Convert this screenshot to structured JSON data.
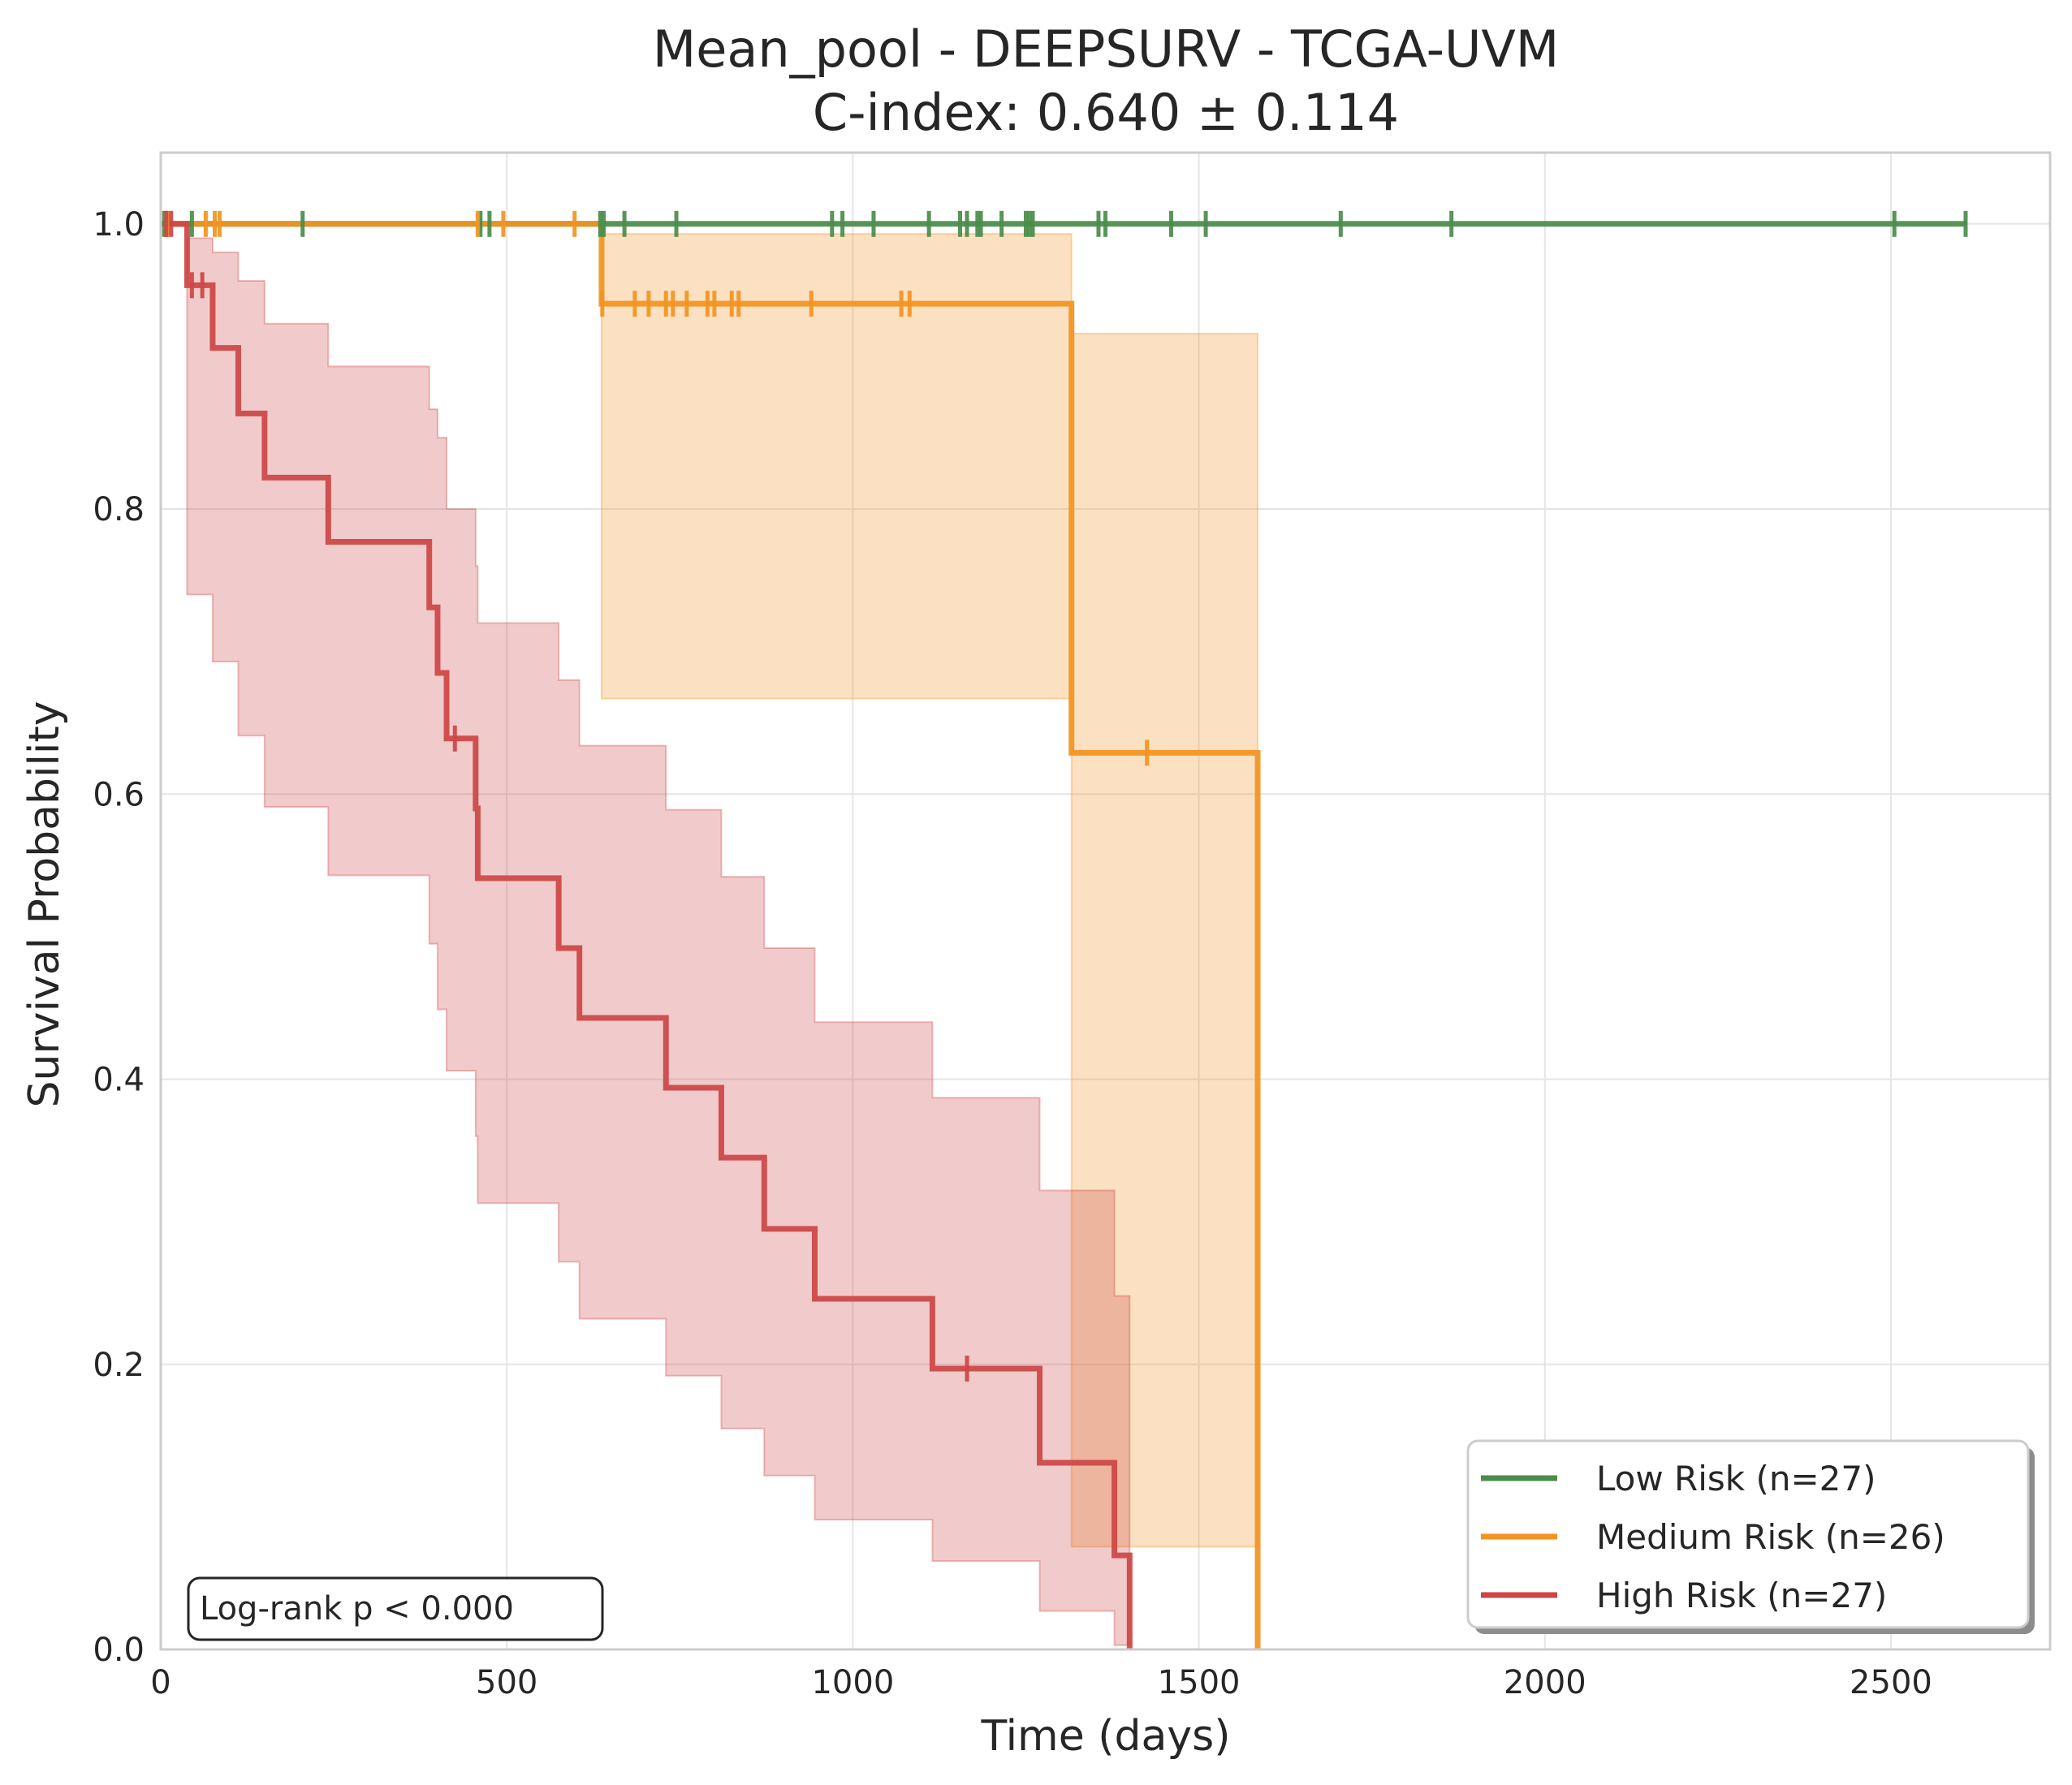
{
  "chart_data": {
    "type": "line",
    "subtype": "kaplan-meier",
    "title": "Mean_pool - DEEPSURV - TCGA-UVM",
    "subtitle": "C-index: 0.640 ± 0.114",
    "xlabel": "Time (days)",
    "ylabel": "Survival Probability",
    "xlim": [
      0,
      2730
    ],
    "ylim": [
      0,
      1.05
    ],
    "xticks": [
      0,
      500,
      1000,
      1500,
      2000,
      2500
    ],
    "yticks": [
      0.0,
      0.2,
      0.4,
      0.6,
      0.8,
      1.0
    ],
    "xtick_labels": [
      "0",
      "500",
      "1000",
      "1500",
      "2000",
      "2500"
    ],
    "ytick_labels": [
      "0.0",
      "0.2",
      "0.4",
      "0.6",
      "0.8",
      "1.0"
    ],
    "grid": true,
    "legend_position": "bottom-right",
    "annotation": "Log-rank p < 0.000",
    "series": [
      {
        "name": "Low Risk (n=27)",
        "color": "#4a8c4a",
        "steps": [
          [
            0,
            1.0
          ],
          [
            2608,
            1.0
          ]
        ],
        "ci": [],
        "censors": [
          [
            5,
            1.0
          ],
          [
            45,
            1.0
          ],
          [
            205,
            1.0
          ],
          [
            462,
            1.0
          ],
          [
            475,
            1.0
          ],
          [
            635,
            1.0
          ],
          [
            640,
            1.0
          ],
          [
            670,
            1.0
          ],
          [
            745,
            1.0
          ],
          [
            970,
            1.0
          ],
          [
            985,
            1.0
          ],
          [
            1030,
            1.0
          ],
          [
            1110,
            1.0
          ],
          [
            1155,
            1.0
          ],
          [
            1165,
            1.0
          ],
          [
            1180,
            1.0
          ],
          [
            1185,
            1.0
          ],
          [
            1215,
            1.0
          ],
          [
            1250,
            1.0
          ],
          [
            1255,
            1.0
          ],
          [
            1260,
            1.0
          ],
          [
            1355,
            1.0
          ],
          [
            1365,
            1.0
          ],
          [
            1460,
            1.0
          ],
          [
            1510,
            1.0
          ],
          [
            1705,
            1.0
          ],
          [
            1865,
            1.0
          ],
          [
            2505,
            1.0
          ],
          [
            2608,
            1.0
          ]
        ]
      },
      {
        "name": "Medium Risk (n=26)",
        "color": "#f29421",
        "steps": [
          [
            0,
            1.0
          ],
          [
            637,
            1.0
          ],
          [
            637,
            0.944
          ],
          [
            1316,
            0.944
          ],
          [
            1316,
            0.629
          ],
          [
            1585,
            0.629
          ],
          [
            1585,
            0.0
          ]
        ],
        "ci": [
          [
            637,
            0.993,
            0.667
          ],
          [
            1316,
            0.923,
            0.072
          ],
          [
            1585,
            0.923,
            0.072
          ]
        ],
        "censors": [
          [
            10,
            1.0
          ],
          [
            65,
            1.0
          ],
          [
            78,
            1.0
          ],
          [
            85,
            1.0
          ],
          [
            458,
            1.0
          ],
          [
            495,
            1.0
          ],
          [
            598,
            1.0
          ],
          [
            638,
            0.944
          ],
          [
            685,
            0.944
          ],
          [
            705,
            0.944
          ],
          [
            730,
            0.944
          ],
          [
            740,
            0.944
          ],
          [
            760,
            0.944
          ],
          [
            790,
            0.944
          ],
          [
            800,
            0.944
          ],
          [
            825,
            0.944
          ],
          [
            835,
            0.944
          ],
          [
            940,
            0.944
          ],
          [
            1070,
            0.944
          ],
          [
            1082,
            0.944
          ],
          [
            1425,
            0.629
          ]
        ]
      },
      {
        "name": "High Risk (n=27)",
        "color": "#cd4545",
        "steps": [
          [
            0,
            1.0
          ],
          [
            38,
            1.0
          ],
          [
            38,
            0.957
          ],
          [
            75,
            0.957
          ],
          [
            75,
            0.913
          ],
          [
            112,
            0.913
          ],
          [
            112,
            0.867
          ],
          [
            150,
            0.867
          ],
          [
            150,
            0.822
          ],
          [
            242,
            0.822
          ],
          [
            242,
            0.777
          ],
          [
            388,
            0.777
          ],
          [
            388,
            0.731
          ],
          [
            400,
            0.731
          ],
          [
            400,
            0.685
          ],
          [
            413,
            0.685
          ],
          [
            413,
            0.639
          ],
          [
            455,
            0.639
          ],
          [
            455,
            0.59
          ],
          [
            458,
            0.59
          ],
          [
            458,
            0.541
          ],
          [
            575,
            0.541
          ],
          [
            575,
            0.492
          ],
          [
            605,
            0.492
          ],
          [
            605,
            0.443
          ],
          [
            730,
            0.443
          ],
          [
            730,
            0.394
          ],
          [
            810,
            0.394
          ],
          [
            810,
            0.345
          ],
          [
            872,
            0.345
          ],
          [
            872,
            0.295
          ],
          [
            945,
            0.295
          ],
          [
            945,
            0.246
          ],
          [
            1115,
            0.246
          ],
          [
            1115,
            0.197
          ],
          [
            1270,
            0.197
          ],
          [
            1270,
            0.131
          ],
          [
            1378,
            0.131
          ],
          [
            1378,
            0.066
          ],
          [
            1400,
            0.066
          ],
          [
            1400,
            0.0
          ]
        ],
        "ci": [
          [
            38,
            0.99,
            0.74
          ],
          [
            75,
            0.98,
            0.693
          ],
          [
            112,
            0.96,
            0.641
          ],
          [
            150,
            0.93,
            0.591
          ],
          [
            242,
            0.9,
            0.543
          ],
          [
            388,
            0.87,
            0.495
          ],
          [
            400,
            0.85,
            0.449
          ],
          [
            413,
            0.8,
            0.406
          ],
          [
            455,
            0.76,
            0.36
          ],
          [
            458,
            0.72,
            0.313
          ],
          [
            575,
            0.68,
            0.272
          ],
          [
            605,
            0.634,
            0.232
          ],
          [
            730,
            0.589,
            0.192
          ],
          [
            810,
            0.542,
            0.155
          ],
          [
            872,
            0.492,
            0.122
          ],
          [
            945,
            0.44,
            0.091
          ],
          [
            1115,
            0.387,
            0.062
          ],
          [
            1270,
            0.322,
            0.027
          ],
          [
            1378,
            0.248,
            0.003
          ],
          [
            1400,
            0.248,
            0.003
          ]
        ],
        "censors": [
          [
            8,
            1.0
          ],
          [
            15,
            1.0
          ],
          [
            45,
            0.957
          ],
          [
            60,
            0.957
          ],
          [
            425,
            0.639
          ],
          [
            1165,
            0.197
          ]
        ]
      }
    ]
  }
}
